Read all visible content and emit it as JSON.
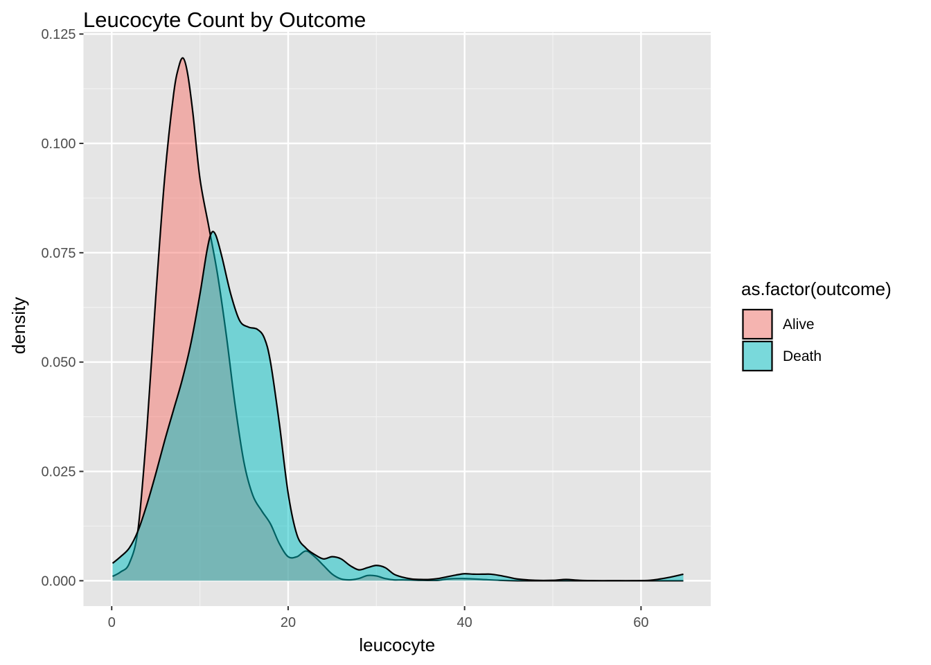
{
  "chart_data": {
    "type": "area",
    "subtype": "density",
    "title": "Leucocyte Count by Outcome",
    "xlabel": "leucocyte",
    "ylabel": "density",
    "xlim": [
      -3.2,
      67.9
    ],
    "ylim": [
      -0.0058,
      0.1255
    ],
    "x_ticks": [
      0,
      20,
      40,
      60
    ],
    "x_tick_labels": [
      "0",
      "20",
      "40",
      "60"
    ],
    "y_ticks": [
      0.0,
      0.025,
      0.05,
      0.075,
      0.1,
      0.125
    ],
    "y_tick_labels": [
      "0.000",
      "0.025",
      "0.050",
      "0.075",
      "0.100",
      "0.125"
    ],
    "x_minor_ticks": [
      10,
      30,
      50
    ],
    "y_minor_ticks": [
      0.0125,
      0.0375,
      0.0625,
      0.0875,
      0.1125
    ],
    "grid": true,
    "legend_position": "right",
    "legend_title": "as.factor(outcome)",
    "series": [
      {
        "name": "Alive",
        "color": "#F8766D",
        "x": [
          0.1,
          1,
          2,
          3,
          4,
          5,
          6,
          7,
          7.6,
          8.1,
          8.6,
          9.2,
          10,
          11,
          12,
          13,
          14,
          15,
          16,
          17,
          18,
          19,
          20,
          21,
          22,
          23,
          24,
          25,
          26,
          27,
          28,
          29,
          30,
          31,
          32,
          33,
          35,
          37,
          38,
          40,
          42,
          44,
          46,
          48,
          50,
          52,
          54,
          56,
          58,
          60,
          62,
          64,
          64.8
        ],
        "values": [
          0.001,
          0.002,
          0.004,
          0.012,
          0.035,
          0.065,
          0.092,
          0.111,
          0.1175,
          0.1195,
          0.116,
          0.107,
          0.092,
          0.081,
          0.07,
          0.056,
          0.04,
          0.027,
          0.0195,
          0.016,
          0.013,
          0.0085,
          0.0055,
          0.0055,
          0.0068,
          0.0055,
          0.0035,
          0.0015,
          0.0004,
          0.0002,
          0.0005,
          0.0012,
          0.0011,
          0.0005,
          0.0002,
          0.0002,
          0.0001,
          0.0001,
          0.0004,
          0.0005,
          0.0003,
          0.0001,
          0.0,
          0.0,
          0.0,
          0.0,
          0.0,
          0.0,
          0.0,
          0.0,
          0.0,
          0.0,
          0.0
        ]
      },
      {
        "name": "Death",
        "color": "#00BFC4",
        "x": [
          0.1,
          1,
          2,
          3,
          4,
          5,
          6,
          7,
          8,
          9,
          10,
          10.8,
          11.3,
          11.8,
          12.5,
          13.5,
          14.5,
          15.5,
          16.5,
          17.3,
          18,
          19,
          20,
          21,
          22,
          23,
          24,
          25,
          26,
          27,
          28,
          29,
          30,
          31,
          32,
          33,
          34,
          35,
          36,
          37,
          38,
          39,
          40,
          41,
          42,
          43,
          44,
          45,
          46,
          48,
          50,
          51.5,
          53,
          55,
          57,
          59,
          61,
          63,
          64.8
        ],
        "values": [
          0.004,
          0.0055,
          0.0075,
          0.0115,
          0.0175,
          0.0245,
          0.032,
          0.039,
          0.046,
          0.0545,
          0.0655,
          0.0755,
          0.0795,
          0.079,
          0.074,
          0.0655,
          0.0595,
          0.058,
          0.0575,
          0.0555,
          0.05,
          0.036,
          0.02,
          0.0105,
          0.0075,
          0.006,
          0.005,
          0.0055,
          0.005,
          0.0035,
          0.0025,
          0.003,
          0.0035,
          0.003,
          0.0015,
          0.0008,
          0.0004,
          0.0003,
          0.0003,
          0.0005,
          0.0009,
          0.0013,
          0.0016,
          0.0015,
          0.0015,
          0.0015,
          0.0012,
          0.0008,
          0.0004,
          0.0001,
          0.0001,
          0.0003,
          0.0001,
          0.0,
          0.0,
          0.0,
          0.0001,
          0.0007,
          0.0015
        ]
      }
    ]
  }
}
